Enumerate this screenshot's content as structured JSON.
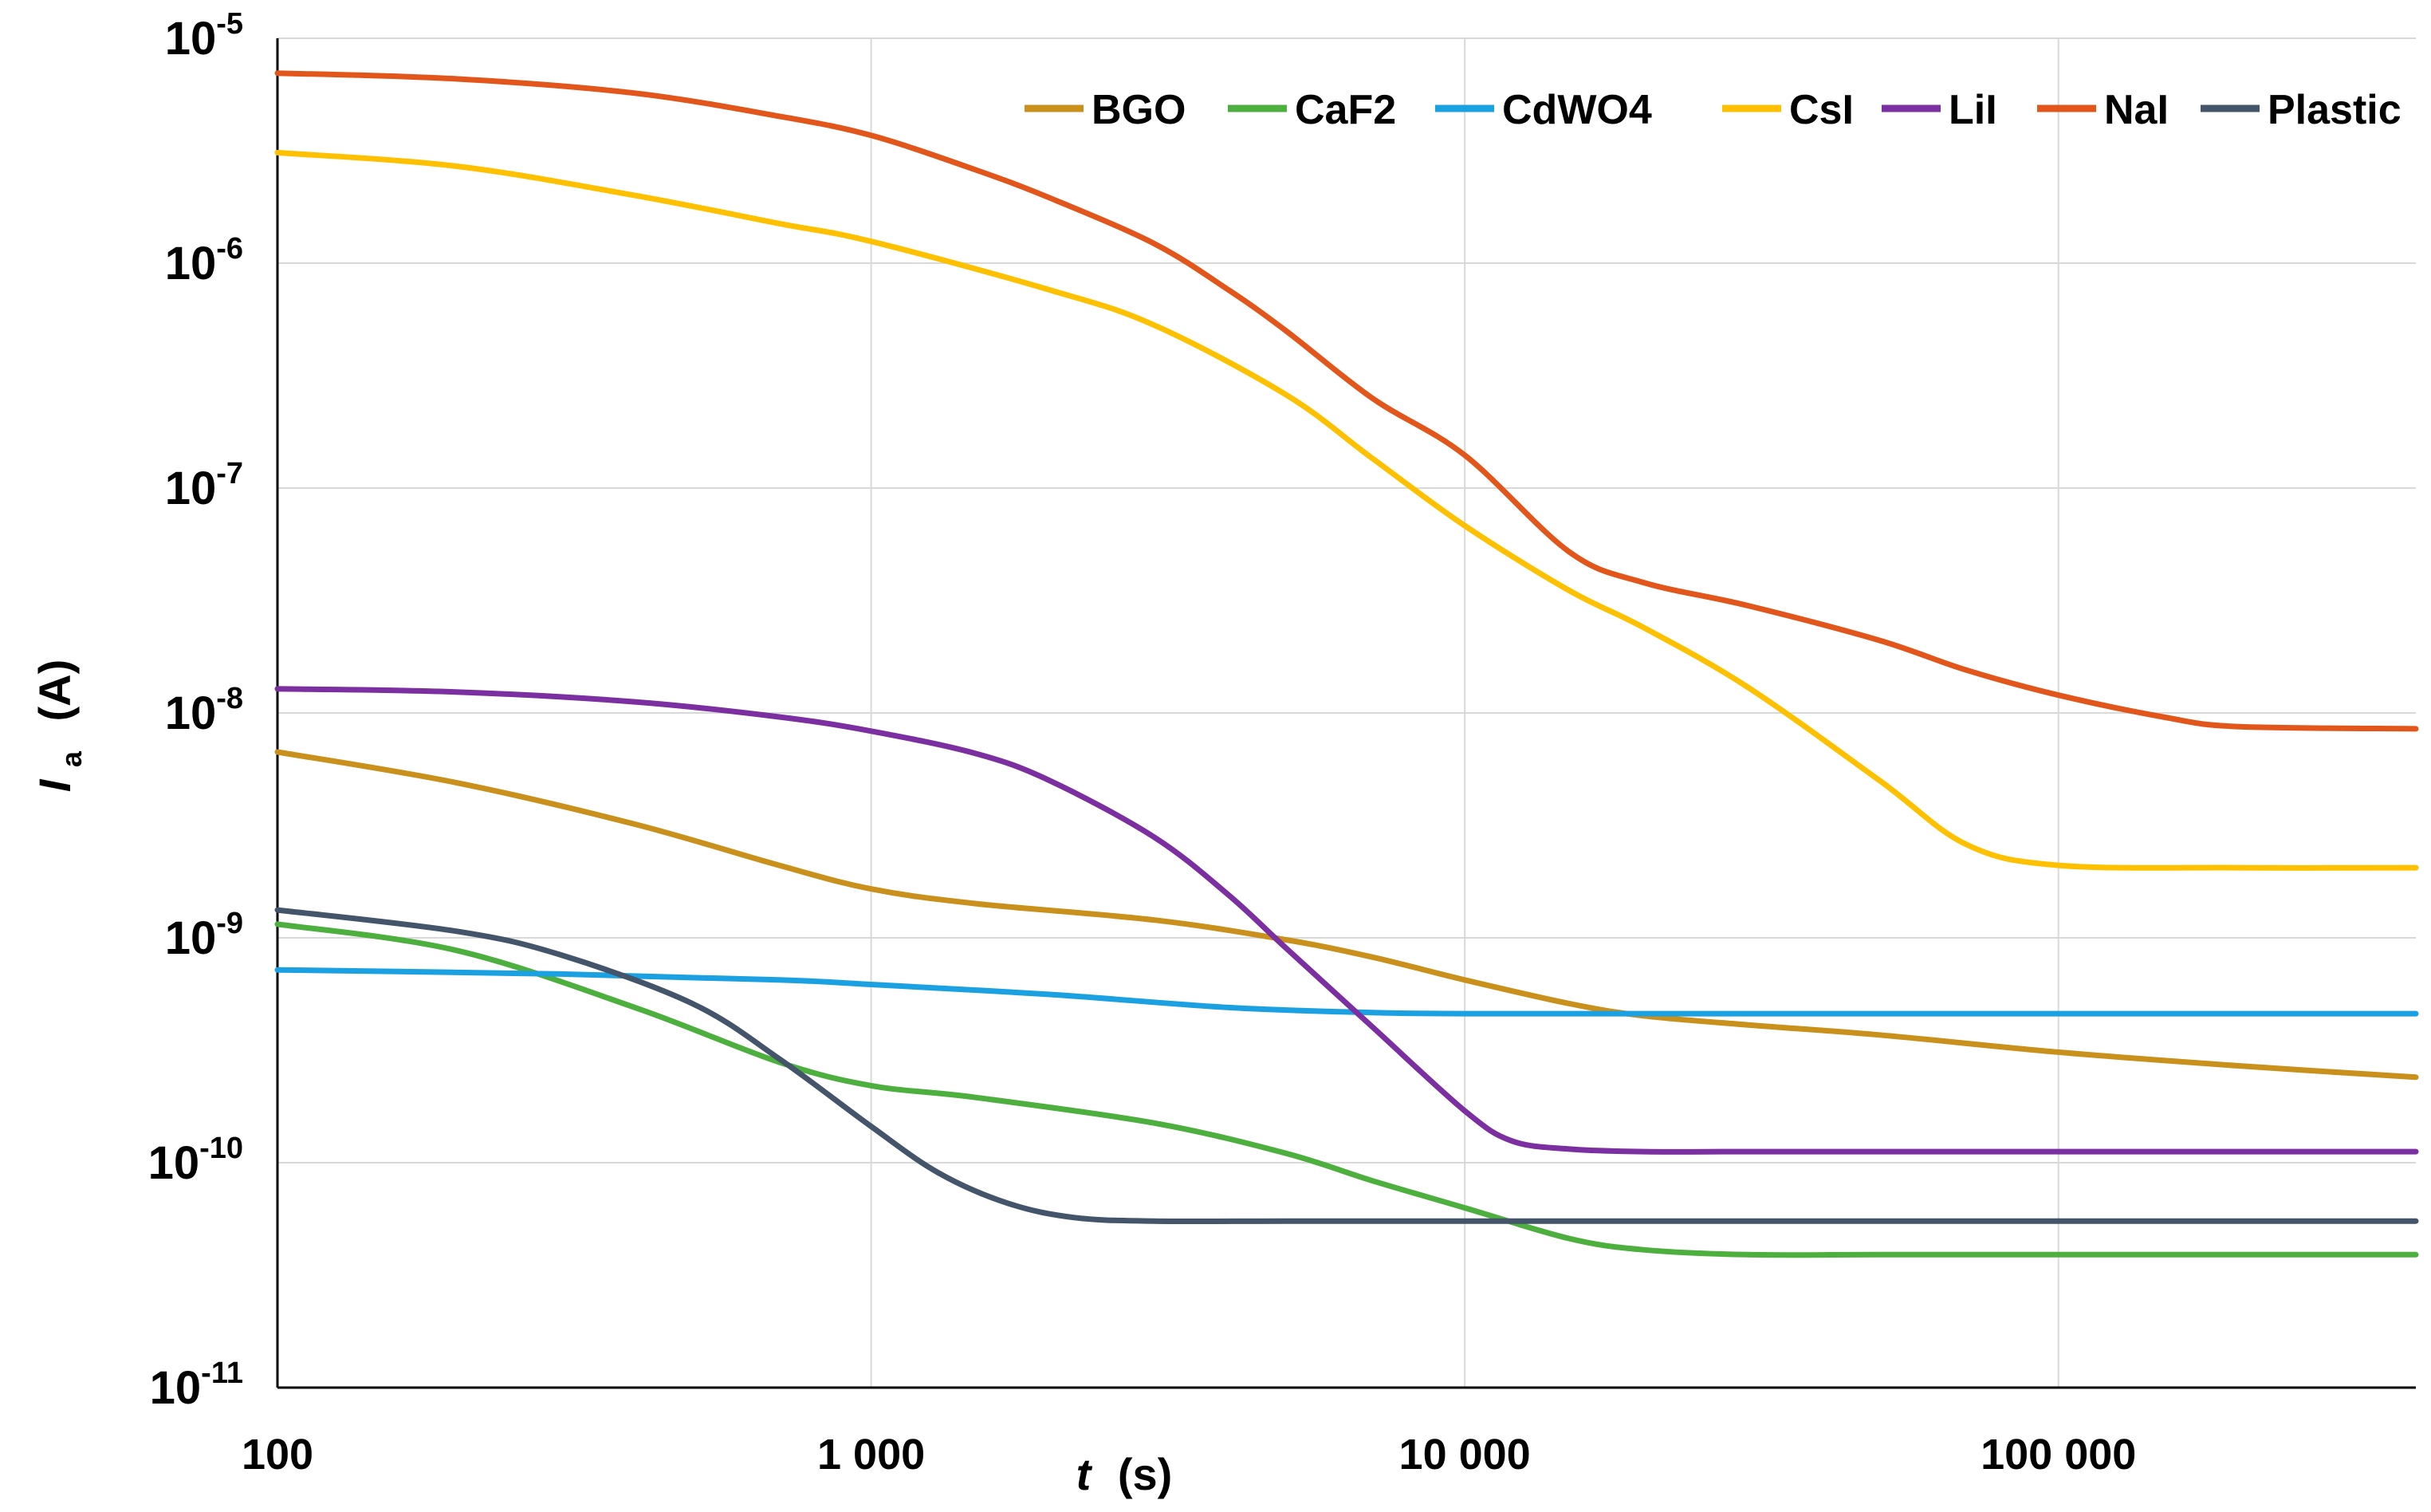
{
  "chart_data": {
    "type": "line",
    "title": "",
    "xlabel": "t",
    "xlabel_unit": "(s)",
    "ylabel": "I",
    "ylabel_sub": "a",
    "ylabel_unit": "(A)",
    "xscale": "log",
    "yscale": "log",
    "xlim": [
      100,
      400000
    ],
    "ylim": [
      1e-11,
      1e-05
    ],
    "grid": true,
    "legend": "top-right",
    "x_ticks": [
      {
        "value": 100,
        "label": "100"
      },
      {
        "value": 1000,
        "label": "1 000"
      },
      {
        "value": 10000,
        "label": "10 000"
      },
      {
        "value": 100000,
        "label": "100 000"
      }
    ],
    "y_ticks": [
      {
        "value": 1e-05,
        "base": "10",
        "exp": "-5"
      },
      {
        "value": 1e-06,
        "base": "10",
        "exp": "-6"
      },
      {
        "value": 1e-07,
        "base": "10",
        "exp": "-7"
      },
      {
        "value": 1e-08,
        "base": "10",
        "exp": "-8"
      },
      {
        "value": 1e-09,
        "base": "10",
        "exp": "-9"
      },
      {
        "value": 1e-10,
        "base": "10",
        "exp": "-10"
      },
      {
        "value": 1e-11,
        "base": "10",
        "exp": "-11"
      }
    ],
    "series": [
      {
        "name": "BGO",
        "color": "#C9901C",
        "x": [
          100,
          200,
          400,
          700,
          1000,
          1500,
          3000,
          5000,
          7000,
          10000,
          15000,
          20000,
          30000,
          50000,
          100000,
          200000,
          400000
        ],
        "y": [
          6.7e-09,
          4.9e-09,
          3.2e-09,
          2.1e-09,
          1.65e-09,
          1.42e-09,
          1.2e-09,
          9.8e-10,
          8.2e-10,
          6.5e-10,
          5.1e-10,
          4.5e-10,
          4.1e-10,
          3.7e-10,
          3.1e-10,
          2.7e-10,
          2.4e-10
        ]
      },
      {
        "name": "CaF2",
        "color": "#4CAF3E",
        "x": [
          100,
          200,
          400,
          700,
          1000,
          1500,
          3000,
          5000,
          7000,
          10000,
          15000,
          20000,
          30000,
          50000,
          100000,
          200000,
          400000
        ],
        "y": [
          1.15e-09,
          8.8e-10,
          4.9e-10,
          2.8e-10,
          2.2e-10,
          1.95e-10,
          1.5e-10,
          1.1e-10,
          8.3e-11,
          6.3e-11,
          4.6e-11,
          4.1e-11,
          3.9e-11,
          3.9e-11,
          3.9e-11,
          3.9e-11,
          3.9e-11
        ]
      },
      {
        "name": "CdWO4",
        "color": "#1BA1E2",
        "x": [
          100,
          300,
          700,
          1000,
          2000,
          4000,
          7000,
          10000,
          20000,
          50000,
          100000,
          200000,
          400000
        ],
        "y": [
          7.2e-10,
          6.9e-10,
          6.5e-10,
          6.2e-10,
          5.6e-10,
          4.9e-10,
          4.65e-10,
          4.6e-10,
          4.6e-10,
          4.6e-10,
          4.6e-10,
          4.6e-10,
          4.6e-10
        ]
      },
      {
        "name": "CsI",
        "color": "#FFC000",
        "x": [
          100,
          200,
          400,
          700,
          1000,
          2000,
          3000,
          5000,
          7000,
          10000,
          15000,
          20000,
          30000,
          50000,
          70000,
          100000,
          200000,
          400000
        ],
        "y": [
          3.1e-06,
          2.7e-06,
          2e-06,
          1.5e-06,
          1.25e-06,
          7.6e-07,
          5.3e-07,
          2.6e-07,
          1.35e-07,
          6.8e-08,
          3.5e-08,
          2.4e-08,
          1.3e-08,
          5e-09,
          2.6e-09,
          2.1e-09,
          2.05e-09,
          2.05e-09
        ]
      },
      {
        "name": "LiI",
        "color": "#7B2FA0",
        "x": [
          100,
          200,
          400,
          700,
          1000,
          1500,
          2000,
          3000,
          4000,
          5000,
          7000,
          10000,
          12000,
          15000,
          20000,
          30000,
          50000,
          100000,
          200000,
          400000
        ],
        "y": [
          1.28e-08,
          1.24e-08,
          1.12e-08,
          9.6e-09,
          8.3e-09,
          6.6e-09,
          5e-09,
          2.8e-09,
          1.55e-09,
          9e-10,
          4e-10,
          1.7e-10,
          1.25e-10,
          1.15e-10,
          1.12e-10,
          1.12e-10,
          1.12e-10,
          1.12e-10,
          1.12e-10,
          1.12e-10
        ]
      },
      {
        "name": "NaI",
        "color": "#E2561C",
        "x": [
          100,
          200,
          400,
          700,
          1000,
          1500,
          2000,
          3000,
          4000,
          5000,
          7000,
          10000,
          15000,
          20000,
          30000,
          50000,
          70000,
          100000,
          150000,
          200000,
          400000
        ],
        "y": [
          7e-06,
          6.6e-06,
          5.7e-06,
          4.5e-06,
          3.7e-06,
          2.6e-06,
          1.95e-06,
          1.22e-06,
          7.6e-07,
          5e-07,
          2.5e-07,
          1.4e-07,
          5.2e-08,
          3.8e-08,
          3e-08,
          2.1e-08,
          1.55e-08,
          1.2e-08,
          9.6e-09,
          8.7e-09,
          8.5e-09
        ]
      },
      {
        "name": "Plastic",
        "color": "#44546A",
        "x": [
          100,
          200,
          300,
          500,
          700,
          1000,
          1300,
          1700,
          2200,
          3000,
          5000,
          10000,
          100000,
          400000
        ],
        "y": [
          1.33e-09,
          1.07e-09,
          8.4e-10,
          5.1e-10,
          2.9e-10,
          1.45e-10,
          9e-11,
          6.6e-11,
          5.7e-11,
          5.5e-11,
          5.5e-11,
          5.5e-11,
          5.5e-11,
          5.5e-11
        ]
      }
    ]
  }
}
